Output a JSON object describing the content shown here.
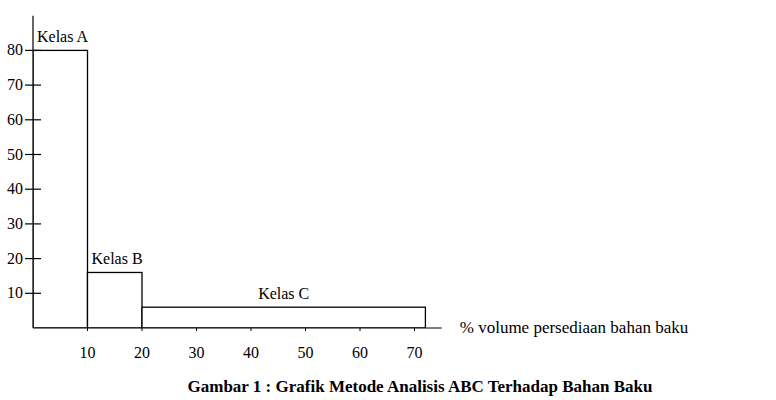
{
  "chart_data": {
    "type": "histogram",
    "title": "Gambar 1 : Grafik Metode Analisis ABC Terhadap Bahan Baku",
    "x_label": "% volume persediaan bahan baku",
    "categories": [
      "Kelas A",
      "Kelas B",
      "Kelas C"
    ],
    "bins": [
      0,
      10,
      20,
      72
    ],
    "values": [
      80,
      16,
      6
    ],
    "color": "#ffffff",
    "xlim": [
      0,
      75
    ],
    "xticks": [
      10,
      20,
      30,
      40,
      50,
      60,
      70
    ],
    "ylim": [
      0,
      90
    ],
    "yticks": [
      10,
      20,
      30,
      40,
      50,
      60,
      70,
      80
    ],
    "grid": false
  }
}
